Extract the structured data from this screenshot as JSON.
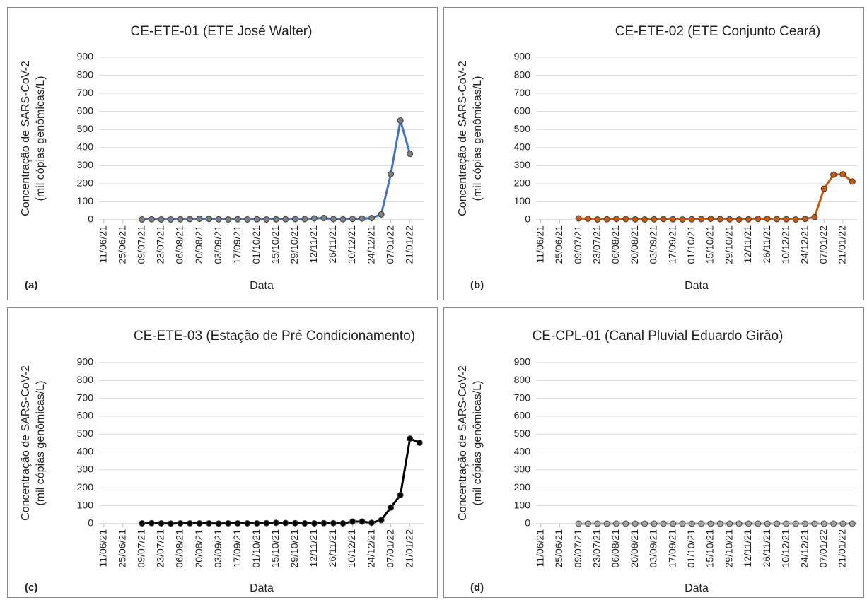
{
  "chart_data": [
    {
      "type": "line",
      "title": "CE-ETE-01 (ETE José Walter)",
      "y_label": [
        "Concentração de SARS-CoV-2",
        "(mil cópias genômicas/L)"
      ],
      "x_label": "Data",
      "panel_label": "(a)",
      "categories": [
        "11/06/21",
        null,
        "25/06/21",
        null,
        "09/07/21",
        null,
        "23/07/21",
        null,
        "06/08/21",
        null,
        "20/08/21",
        null,
        "03/09/21",
        null,
        "17/09/21",
        null,
        "01/10/21",
        null,
        "15/10/21",
        null,
        "29/10/21",
        null,
        "12/11/21",
        null,
        "26/11/21",
        null,
        "10/12/21",
        null,
        "24/12/21",
        null,
        "07/01/22",
        null,
        "21/01/22",
        null
      ],
      "series": [
        {
          "color": "#4472c4",
          "marker_color": "#7f7f7f",
          "values": [
            null,
            null,
            null,
            null,
            2,
            3,
            2,
            2,
            3,
            4,
            6,
            5,
            3,
            2,
            3,
            2,
            3,
            2,
            3,
            3,
            4,
            4,
            8,
            10,
            4,
            3,
            5,
            7,
            10,
            30,
            253,
            550,
            365,
            null
          ]
        }
      ],
      "ylim": [
        0,
        900
      ],
      "yticks": [
        0,
        100,
        200,
        300,
        400,
        500,
        600,
        700,
        800,
        900
      ],
      "grid": true
    },
    {
      "type": "line",
      "title": "CE-ETE-02 (ETE Conjunto Ceará)",
      "y_label": [
        "Concentração de SARS-CoV-2",
        "(mil cópias genômicas/L)"
      ],
      "x_label": "Data",
      "panel_label": "(b)",
      "categories": [
        "11/06/21",
        null,
        "25/06/21",
        null,
        "09/07/21",
        null,
        "23/07/21",
        null,
        "06/08/21",
        null,
        "20/08/21",
        null,
        "03/09/21",
        null,
        "17/09/21",
        null,
        "01/10/21",
        null,
        "15/10/21",
        null,
        "29/10/21",
        null,
        "12/11/21",
        null,
        "26/11/21",
        null,
        "10/12/21",
        null,
        "24/12/21",
        null,
        "07/01/22",
        null,
        "21/01/22",
        null
      ],
      "series": [
        {
          "color": "#c55a11",
          "marker_color": "#c55a11",
          "values": [
            null,
            null,
            null,
            null,
            8,
            6,
            2,
            3,
            5,
            4,
            3,
            2,
            3,
            4,
            3,
            2,
            3,
            4,
            6,
            4,
            3,
            2,
            3,
            5,
            6,
            4,
            3,
            2,
            5,
            15,
            172,
            250,
            252,
            212
          ]
        }
      ],
      "ylim": [
        0,
        900
      ],
      "yticks": [
        0,
        100,
        200,
        300,
        400,
        500,
        600,
        700,
        800,
        900
      ],
      "grid": true
    },
    {
      "type": "line",
      "title": "CE-ETE-03 (Estação de Pré Condicionamento)",
      "y_label": [
        "Concentração de SARS-CoV-2",
        "(mil cópias genômicas/L)"
      ],
      "x_label": "Data",
      "panel_label": "(c)",
      "categories": [
        "11/06/21",
        null,
        "25/06/21",
        null,
        "09/07/21",
        null,
        "23/07/21",
        null,
        "06/08/21",
        null,
        "20/08/21",
        null,
        "03/09/21",
        null,
        "17/09/21",
        null,
        "01/10/21",
        null,
        "15/10/21",
        null,
        "29/10/21",
        null,
        "12/11/21",
        null,
        "26/11/21",
        null,
        "10/12/21",
        null,
        "24/12/21",
        null,
        "07/01/22",
        null,
        "21/01/22",
        null
      ],
      "series": [
        {
          "color": "#000000",
          "marker_color": "#000000",
          "values": [
            null,
            null,
            null,
            null,
            2,
            3,
            2,
            1,
            2,
            2,
            2,
            2,
            1,
            2,
            2,
            2,
            2,
            3,
            5,
            4,
            3,
            2,
            2,
            3,
            3,
            2,
            12,
            12,
            5,
            20,
            90,
            160,
            475,
            452
          ]
        }
      ],
      "ylim": [
        0,
        900
      ],
      "yticks": [
        0,
        100,
        200,
        300,
        400,
        500,
        600,
        700,
        800,
        900
      ],
      "grid": true
    },
    {
      "type": "line",
      "title": "CE-CPL-01 (Canal Pluvial Eduardo Girão)",
      "y_label": [
        "Concentração de SARS-CoV-2",
        "(mil cópias genômicas/L)"
      ],
      "x_label": "Data",
      "panel_label": "(d)",
      "categories": [
        "11/06/21",
        null,
        "25/06/21",
        null,
        "09/07/21",
        null,
        "23/07/21",
        null,
        "06/08/21",
        null,
        "20/08/21",
        null,
        "03/09/21",
        null,
        "17/09/21",
        null,
        "01/10/21",
        null,
        "15/10/21",
        null,
        "29/10/21",
        null,
        "12/11/21",
        null,
        "26/11/21",
        null,
        "10/12/21",
        null,
        "24/12/21",
        null,
        "07/01/22",
        null,
        "21/01/22",
        null
      ],
      "series": [
        {
          "color": "#a5a5a5",
          "marker_color": "#a5a5a5",
          "values": [
            null,
            null,
            null,
            null,
            0,
            0,
            0,
            0,
            0,
            0,
            0,
            0,
            0,
            0,
            0,
            0,
            0,
            0,
            0,
            0,
            0,
            0,
            0,
            0,
            0,
            0,
            0,
            0,
            0,
            0,
            0,
            0,
            0,
            0
          ]
        }
      ],
      "ylim": [
        0,
        900
      ],
      "yticks": [
        0,
        100,
        200,
        300,
        400,
        500,
        600,
        700,
        800,
        900
      ],
      "grid": true
    }
  ]
}
